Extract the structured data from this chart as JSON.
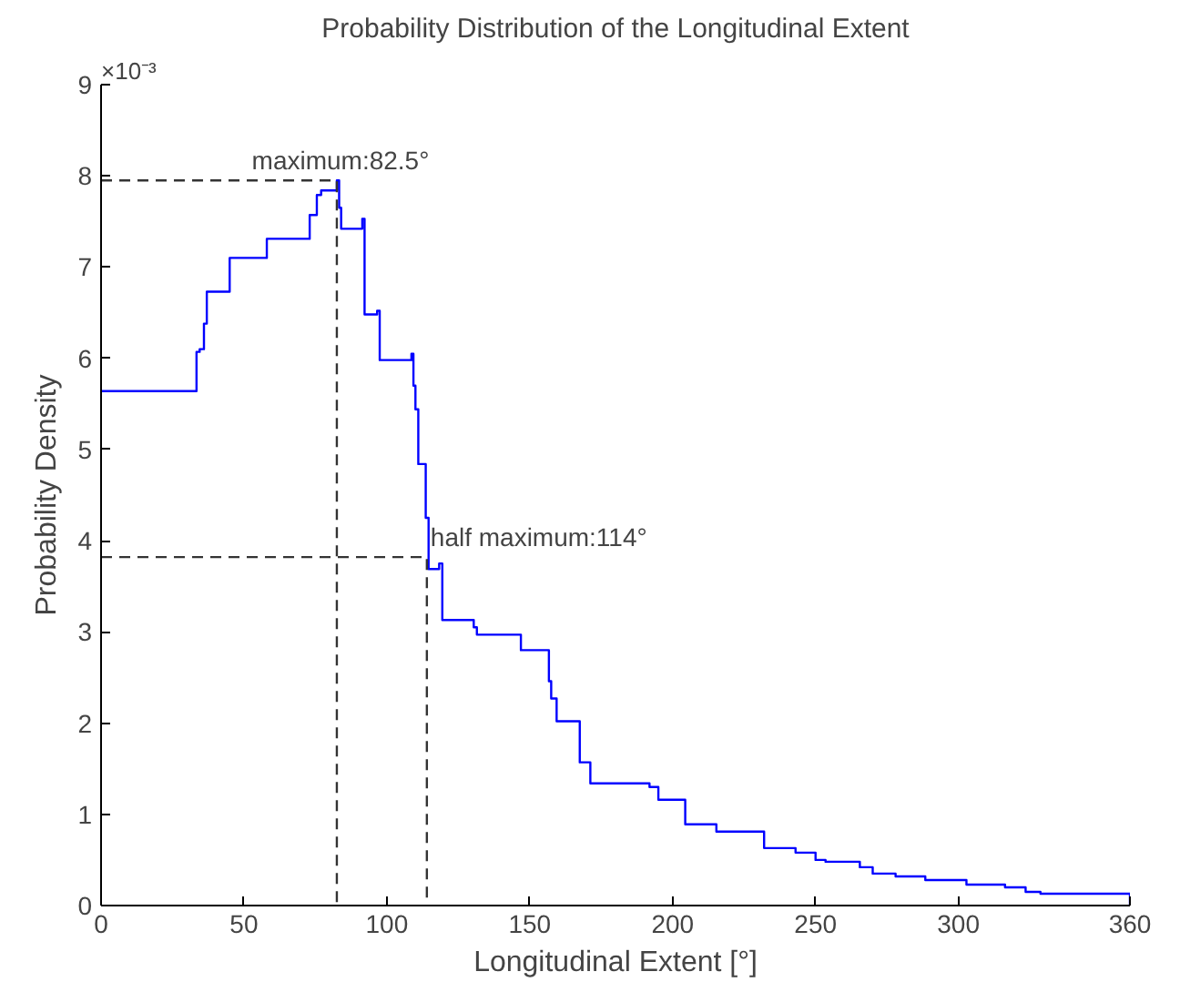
{
  "chart_data": {
    "type": "step",
    "title": "Probability Distribution of the Longitudinal Extent",
    "xlabel": "Longitudinal Extent [°]",
    "ylabel": "Probability Density",
    "x": [
      0,
      33.4,
      34.5,
      36,
      37,
      45,
      58,
      73,
      75.5,
      77,
      82.5,
      83.3,
      84,
      91.4,
      92.2,
      96.6,
      97.5,
      108.6,
      109.3,
      110,
      111,
      113.6,
      114.6,
      118.3,
      119.4,
      130.4,
      131.5,
      146.9,
      156.7,
      157.5,
      159.4,
      167.5,
      171.2,
      191.9,
      195,
      204.4,
      215.3,
      232,
      243,
      250,
      253.5,
      265.5,
      270,
      278,
      288.4,
      302.8,
      316.3,
      323.5,
      328.7,
      360
    ],
    "series": [
      {
        "color": "#0000ff",
        "values": [
          5.64,
          6.07,
          6.1,
          6.38,
          6.73,
          7.1,
          7.31,
          7.57,
          7.79,
          7.84,
          7.95,
          7.65,
          7.42,
          7.53,
          6.48,
          6.52,
          5.98,
          6.05,
          5.7,
          5.44,
          4.84,
          4.25,
          3.69,
          3.75,
          3.13,
          3.05,
          2.97,
          2.8,
          2.46,
          2.27,
          2.02,
          1.57,
          1.34,
          1.3,
          1.16,
          0.89,
          0.81,
          0.63,
          0.58,
          0.5,
          0.48,
          0.42,
          0.35,
          0.32,
          0.28,
          0.23,
          0.2,
          0.15,
          0.13,
          0
        ]
      },
      {
        "type": "line",
        "color": "#333333",
        "line_style": "dashed",
        "x": [
          0,
          82.5,
          82.5
        ],
        "values": [
          7.95,
          7.95,
          0
        ]
      },
      {
        "type": "line",
        "color": "#333333",
        "line_style": "dashed",
        "x": [
          0,
          114,
          114
        ],
        "values": [
          3.82,
          3.82,
          0
        ]
      }
    ],
    "xlim": [
      0,
      360
    ],
    "xticks": [
      0,
      50,
      100,
      150,
      200,
      250,
      300,
      360
    ],
    "ylim": [
      0,
      9
    ],
    "yticks": [
      0,
      1,
      2,
      3,
      4,
      5,
      6,
      7,
      8,
      9
    ],
    "annotations": [
      "×10⁻³",
      {
        "text": "maximum:82.5°",
        "x": 82.5,
        "y": 7.95
      },
      {
        "text": "half maximum:114°",
        "x": 114,
        "y": 3.82
      }
    ],
    "line_style": "solid",
    "grid": false
  }
}
